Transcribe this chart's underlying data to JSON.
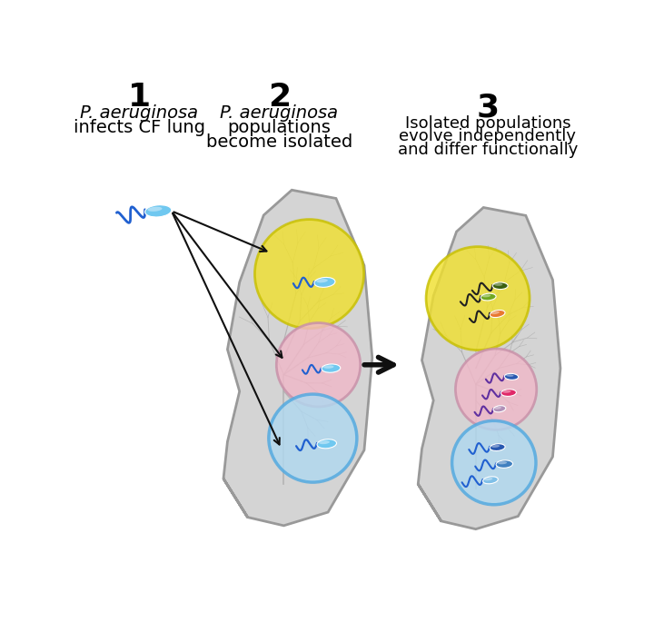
{
  "label1_num": "1",
  "label1_text1": "P. aeruginosa",
  "label1_text2": "infects CF lung",
  "label2_num": "2",
  "label2_text1": "P. aeruginosa",
  "label2_text2": "populations",
  "label2_text3": "become isolated",
  "label3_num": "3",
  "label3_text1": "Isolated populations",
  "label3_text2": "evolve independently",
  "label3_text3": "and differ functionally",
  "bg_color": "#ffffff",
  "lung_fill": "#d4d4d4",
  "lung_edge": "#999999",
  "airway_color": "#aaaaaa",
  "yellow_circle": "#f0e030",
  "pink_circle": "#f0b8c8",
  "blue_circle": "#b0d8f0",
  "circle_edge_yellow": "#c8c000",
  "circle_edge_pink": "#c890a8",
  "circle_edge_blue": "#50a8e0",
  "bact_cyan": "#70c8f0",
  "bact_dark_blue": "#2858b0",
  "bact_orange": "#e87830",
  "bact_dark_green": "#3a6010",
  "bact_light_green": "#70a820",
  "bact_pink": "#e02868",
  "bact_purple": "#6030a0",
  "bact_mauve": "#b090b8",
  "bact_mid_blue": "#4080c0",
  "bact_sky": "#80c0e8",
  "flagella_blue": "#2060d0",
  "flagella_black": "#202020",
  "flagella_purple": "#6030a0",
  "arrow_color": "#101010",
  "big_arrow_color": "#101010"
}
